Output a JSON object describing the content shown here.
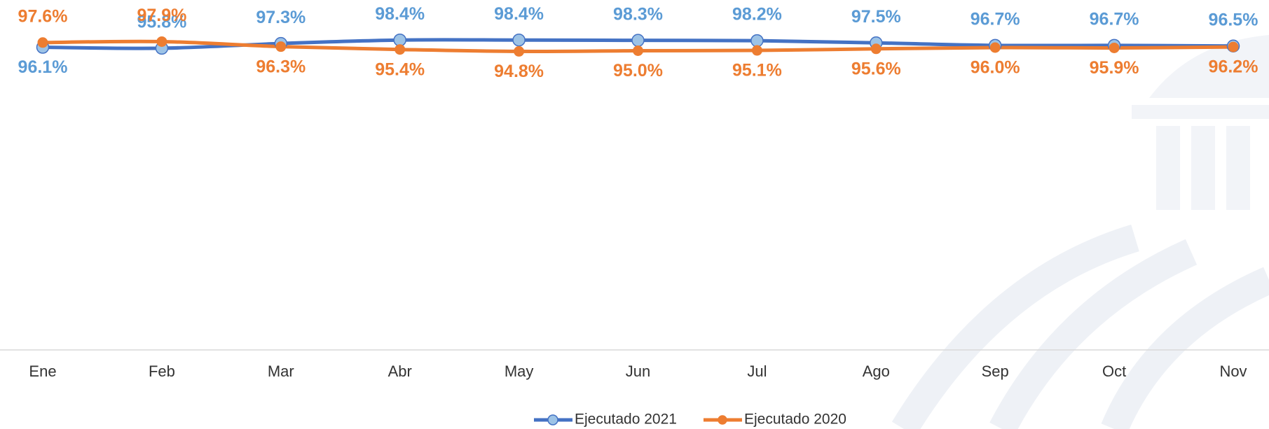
{
  "chart_data": {
    "type": "line",
    "categories": [
      "Ene",
      "Feb",
      "Mar",
      "Abr",
      "May",
      "Jun",
      "Jul",
      "Ago",
      "Sep",
      "Oct",
      "Nov"
    ],
    "ylim": [
      0,
      100
    ],
    "legend": "bottom",
    "series": [
      {
        "name": "Ejecutado 2021",
        "color": "#4472c4",
        "marker_color": "#9dc3e6",
        "label_color": "#5b9bd5",
        "values": [
          96.1,
          95.8,
          97.3,
          98.4,
          98.4,
          98.3,
          98.2,
          97.5,
          96.7,
          96.7,
          96.5
        ],
        "value_labels": [
          "96.1%",
          "95.8%",
          "97.3%",
          "98.4%",
          "98.4%",
          "98.3%",
          "98.2%",
          "97.5%",
          "96.7%",
          "96.7%",
          "96.5%"
        ]
      },
      {
        "name": "Ejecutado 2020",
        "color": "#ed7d31",
        "marker_color": "#ed7d31",
        "label_color": "#ed7d31",
        "values": [
          97.6,
          97.9,
          96.3,
          95.4,
          94.8,
          95.0,
          95.1,
          95.6,
          96.0,
          95.9,
          96.2
        ],
        "value_labels": [
          "97.6%",
          "97.9%",
          "96.3%",
          "95.4%",
          "94.8%",
          "95.0%",
          "95.1%",
          "95.6%",
          "96.0%",
          "95.9%",
          "96.2%"
        ]
      }
    ]
  }
}
